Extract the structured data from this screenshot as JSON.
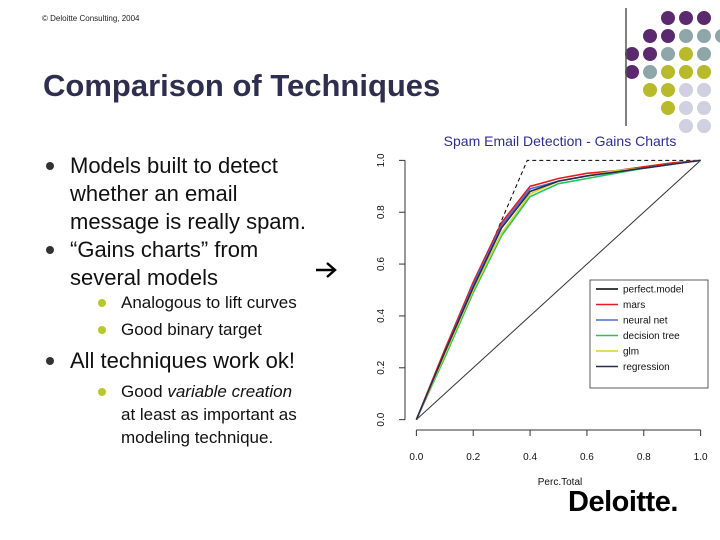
{
  "copyright": "© Deloitte Consulting, 2004",
  "title": "Comparison of Techniques",
  "bullets": [
    {
      "lines": [
        "Models built to detect",
        "whether an email",
        "message is really spam."
      ]
    },
    {
      "lines": [
        "“Gains charts” from",
        "several models"
      ]
    },
    {
      "lines": [
        "Analogous to lift curves"
      ],
      "level": 2
    },
    {
      "lines": [
        "Good binary target"
      ],
      "level": 2
    },
    {
      "lines": [
        "All techniques work ok!"
      ]
    },
    {
      "lead": "Good",
      "emphasis": "variable creation",
      "lines": [
        "at least as important as",
        "modeling technique."
      ],
      "level": 2
    }
  ],
  "logo": "Deloitte.",
  "chart_data": {
    "type": "line",
    "title": "Spam Email Detection - Gains Charts",
    "x_label": "Perc.Total",
    "xlim": [
      -0.04,
      1.04
    ],
    "ylim": [
      -0.04,
      1.04
    ],
    "xticks": [
      {
        "value": 0,
        "label": "0.0"
      },
      {
        "value": 0.2,
        "label": "0.2"
      },
      {
        "value": 0.4,
        "label": "0.4"
      },
      {
        "value": 0.6,
        "label": "0.6"
      },
      {
        "value": 0.8,
        "label": "0.8"
      },
      {
        "value": 1,
        "label": "1.0"
      }
    ],
    "yticks": [
      {
        "value": 0,
        "label": "0.0"
      },
      {
        "value": 0.2,
        "label": "0.2"
      },
      {
        "value": 0.4,
        "label": "0.4"
      },
      {
        "value": 0.6,
        "label": "0.6"
      },
      {
        "value": 0.8,
        "label": "0.8"
      },
      {
        "value": 1,
        "label": "1.0"
      }
    ],
    "reference_line": {
      "x": [
        0,
        1
      ],
      "values": [
        0,
        1
      ],
      "color": "#333333"
    },
    "legend": "center-right",
    "series": [
      {
        "name": "perfect.model",
        "color": "#000000",
        "dashed": true,
        "x": [
          0,
          0.39,
          1
        ],
        "values": [
          0,
          1,
          1
        ]
      },
      {
        "name": "mars",
        "color": "#e41a1c",
        "x": [
          0,
          0.1,
          0.2,
          0.3,
          0.4,
          0.5,
          0.6,
          0.7,
          0.8,
          0.9,
          1
        ],
        "values": [
          0,
          0.27,
          0.53,
          0.76,
          0.9,
          0.93,
          0.95,
          0.96,
          0.975,
          0.99,
          1
        ]
      },
      {
        "name": "neural net",
        "color": "#4a6fd8",
        "x": [
          0,
          0.1,
          0.2,
          0.3,
          0.4,
          0.5,
          0.6,
          0.7,
          0.8,
          0.9,
          1
        ],
        "values": [
          0,
          0.26,
          0.52,
          0.75,
          0.89,
          0.92,
          0.94,
          0.96,
          0.97,
          0.985,
          1
        ]
      },
      {
        "name": "decision tree",
        "color": "#22c55e",
        "x": [
          0,
          0.1,
          0.2,
          0.3,
          0.4,
          0.5,
          0.6,
          0.7,
          0.8,
          0.9,
          1
        ],
        "values": [
          0,
          0.24,
          0.49,
          0.71,
          0.86,
          0.91,
          0.93,
          0.95,
          0.97,
          0.985,
          1
        ]
      },
      {
        "name": "glm",
        "color": "#d6d62a",
        "x": [
          0,
          0.1,
          0.2,
          0.3,
          0.4,
          0.5,
          0.6,
          0.7,
          0.8,
          0.9,
          1
        ],
        "values": [
          0,
          0.25,
          0.5,
          0.72,
          0.87,
          0.92,
          0.94,
          0.96,
          0.97,
          0.985,
          1
        ]
      },
      {
        "name": "regression",
        "color": "#2a2a55",
        "x": [
          0,
          0.1,
          0.2,
          0.3,
          0.4,
          0.5,
          0.6,
          0.7,
          0.8,
          0.9,
          1
        ],
        "values": [
          0,
          0.26,
          0.51,
          0.74,
          0.88,
          0.92,
          0.94,
          0.955,
          0.97,
          0.985,
          1
        ]
      }
    ]
  }
}
